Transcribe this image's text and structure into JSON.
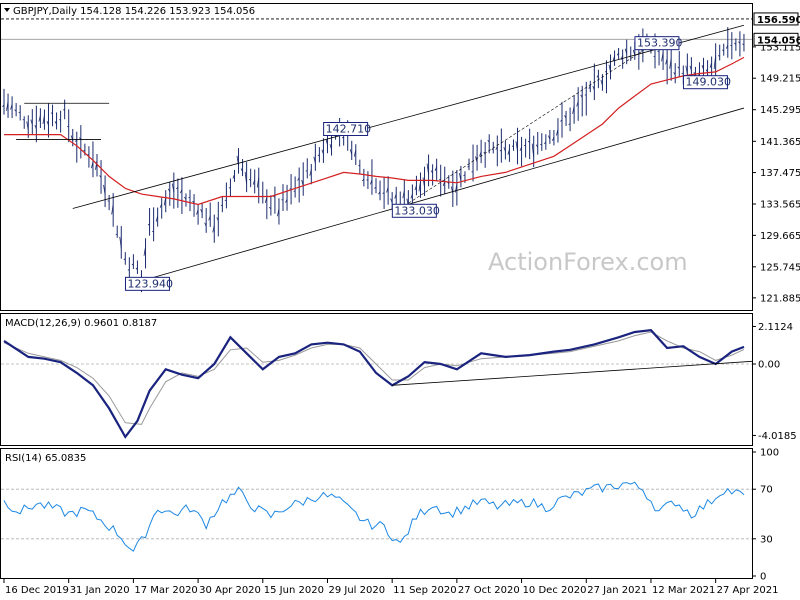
{
  "header": {
    "price_title": "GBPJPY,Daily  154.128 154.226 153.923 154.056",
    "macd_title": "MACD(12,26,9) 0.9601 0.8187",
    "rsi_title": "RSI(14) 65.0835"
  },
  "watermark": "ActionForex.com",
  "colors": {
    "price_bars": "#1a2a6c",
    "sma": "#d42020",
    "trendline": "#000000",
    "macd_line": "#1a237e",
    "signal_line": "#999999",
    "rsi_line": "#1e88e5",
    "grid": "#b0b0b0",
    "label_border": "#1a237e"
  },
  "chart_data": [
    {
      "type": "line",
      "panel": "price",
      "symbol": "GBPJPY",
      "timeframe": "Daily",
      "ohlc": {
        "open": 154.128,
        "high": 154.226,
        "low": 153.923,
        "close": 154.056
      },
      "y_ticks": [
        "121.885",
        "125.745",
        "129.665",
        "133.565",
        "137.475",
        "141.365",
        "145.295",
        "149.215",
        "153.115"
      ],
      "y_tick_values": [
        121.885,
        125.745,
        129.665,
        133.565,
        137.475,
        141.365,
        145.295,
        149.215,
        153.115
      ],
      "ylim": [
        120.5,
        158.2
      ],
      "reference_levels": [
        {
          "label": "156.590",
          "value": 156.59,
          "style": "dashed",
          "boxed": true
        },
        {
          "label": "154.056",
          "value": 154.056,
          "style": "solid",
          "boxed": true
        }
      ],
      "annotations": [
        {
          "label": "123.940",
          "x": 34,
          "value": 123.94
        },
        {
          "label": "142.710",
          "x": 83,
          "value": 142.71
        },
        {
          "label": "133.030",
          "x": 100,
          "value": 133.03
        },
        {
          "label": "153.390",
          "x": 160,
          "value": 153.39
        },
        {
          "label": "149.030",
          "x": 172,
          "value": 149.03
        }
      ],
      "x_ticks": [
        "16 Dec 2019",
        "31 Jan 2020",
        "17 Mar 2020",
        "30 Apr 2020",
        "15 Jun 2020",
        "29 Jul 2020",
        "11 Sep 2020",
        "27 Oct 2020",
        "10 Dec 2020",
        "27 Jan 2021",
        "12 Mar 2021",
        "27 Apr 2021"
      ],
      "x_tick_index": [
        0,
        16,
        32,
        48,
        64,
        80,
        96,
        112,
        128,
        144,
        160,
        176
      ],
      "series": [
        {
          "name": "",
          "x": [
            0,
            6,
            10,
            15,
            18,
            22,
            26,
            30,
            33,
            34,
            36,
            42,
            48,
            52,
            55,
            58,
            60,
            64,
            68,
            72,
            76,
            80,
            83,
            86,
            88,
            92,
            96,
            100,
            106,
            112,
            118,
            124,
            130,
            136,
            140,
            146,
            152,
            156,
            160,
            164,
            168,
            172,
            176,
            180,
            183
          ],
          "values": [
            146.3,
            143.8,
            144.3,
            144.6,
            141.0,
            139.5,
            134.5,
            126.8,
            125.5,
            124.0,
            131.0,
            135.3,
            133.0,
            131.0,
            134.0,
            139.0,
            137.5,
            134.5,
            133.0,
            135.5,
            138.0,
            141.5,
            142.6,
            141.0,
            138.0,
            136.5,
            134.0,
            134.5,
            137.5,
            136.0,
            140.5,
            140.0,
            140.5,
            142.5,
            144.5,
            148.0,
            152.0,
            152.8,
            153.3,
            151.0,
            150.2,
            149.3,
            151.0,
            153.6,
            154.056
          ]
        },
        {
          "name": "",
          "x": [
            0,
            8,
            14,
            18,
            22,
            26,
            30,
            34,
            38,
            42,
            48,
            54,
            60,
            66,
            72,
            78,
            84,
            88,
            92,
            96,
            100,
            106,
            112,
            118,
            124,
            130,
            136,
            142,
            148,
            152,
            156,
            160,
            164,
            168,
            172,
            176,
            180,
            183
          ],
          "values": [
            142.2,
            142.2,
            142.2,
            140.8,
            139.0,
            137.0,
            135.5,
            134.8,
            134.5,
            134.2,
            133.5,
            134.5,
            134.5,
            134.5,
            135.5,
            136.5,
            137.5,
            137.3,
            137.0,
            136.8,
            136.5,
            136.5,
            136.2,
            137.0,
            137.5,
            138.5,
            139.5,
            141.5,
            143.5,
            145.5,
            147.0,
            148.5,
            149.0,
            149.5,
            149.8,
            150.0,
            151.0,
            151.8
          ]
        }
      ],
      "channel_lines": [
        {
          "from": {
            "x": 34,
            "value": 124.0
          },
          "to": {
            "x": 183,
            "value": 145.5
          }
        },
        {
          "from": {
            "x": 17,
            "value": 133.0
          },
          "to": {
            "x": 183,
            "value": 155.8
          }
        }
      ]
    },
    {
      "type": "line",
      "panel": "macd",
      "title": "MACD(12,26,9) 0.9601 0.8187",
      "y_ticks": [
        "2.1124",
        "0.00",
        "-4.0185"
      ],
      "y_tick_values": [
        2.1124,
        0.0,
        -4.0185
      ],
      "ylim": [
        -4.5,
        2.7
      ],
      "series": [
        {
          "name": "MACD",
          "x": [
            0,
            6,
            10,
            14,
            18,
            22,
            26,
            30,
            33,
            36,
            40,
            44,
            48,
            52,
            56,
            60,
            64,
            68,
            72,
            76,
            80,
            84,
            88,
            92,
            96,
            100,
            104,
            108,
            112,
            118,
            124,
            130,
            136,
            140,
            146,
            152,
            156,
            160,
            164,
            168,
            172,
            176,
            180,
            183
          ],
          "values": [
            1.3,
            0.4,
            0.3,
            0.1,
            -0.5,
            -1.2,
            -2.5,
            -4.1,
            -3.2,
            -1.5,
            -0.3,
            -0.6,
            -0.8,
            0.0,
            1.5,
            0.6,
            -0.3,
            0.4,
            0.6,
            1.1,
            1.2,
            1.1,
            0.7,
            -0.5,
            -1.2,
            -0.7,
            0.1,
            0.0,
            -0.3,
            0.6,
            0.4,
            0.5,
            0.7,
            0.8,
            1.1,
            1.5,
            1.8,
            1.9,
            0.9,
            1.0,
            0.4,
            0.0,
            0.7,
            0.96
          ]
        },
        {
          "name": "Signal",
          "x": [
            0,
            6,
            10,
            14,
            18,
            22,
            26,
            30,
            34,
            36,
            40,
            44,
            48,
            52,
            56,
            60,
            64,
            68,
            72,
            76,
            80,
            84,
            88,
            92,
            96,
            100,
            104,
            108,
            112,
            118,
            124,
            130,
            136,
            140,
            146,
            152,
            156,
            160,
            164,
            168,
            172,
            176,
            180,
            183
          ],
          "values": [
            1.2,
            0.6,
            0.4,
            0.2,
            -0.2,
            -0.8,
            -1.8,
            -3.3,
            -3.4,
            -2.5,
            -1.0,
            -0.5,
            -0.7,
            -0.3,
            0.8,
            0.9,
            0.1,
            0.2,
            0.5,
            0.9,
            1.1,
            1.1,
            0.9,
            0.0,
            -0.9,
            -0.9,
            -0.2,
            0.0,
            -0.1,
            0.3,
            0.4,
            0.5,
            0.6,
            0.7,
            1.0,
            1.3,
            1.6,
            1.8,
            1.3,
            0.9,
            0.7,
            0.2,
            0.5,
            0.82
          ]
        }
      ],
      "channel_lines": [
        {
          "from": {
            "x": 96,
            "value": -1.2
          },
          "to": {
            "x": 185,
            "value": 0.15
          }
        }
      ]
    },
    {
      "type": "line",
      "panel": "rsi",
      "title": "RSI(14) 65.0835",
      "y_ticks": [
        "100",
        "70",
        "30",
        "0"
      ],
      "y_tick_values": [
        100,
        70,
        30,
        0
      ],
      "ylim": [
        0,
        100
      ],
      "dashed_levels": [
        70,
        30
      ],
      "series": [
        {
          "name": "RSI",
          "x": [
            0,
            4,
            8,
            12,
            16,
            20,
            24,
            28,
            32,
            34,
            38,
            42,
            46,
            50,
            54,
            58,
            62,
            66,
            70,
            74,
            78,
            82,
            86,
            90,
            94,
            98,
            102,
            106,
            110,
            114,
            118,
            122,
            126,
            130,
            134,
            138,
            142,
            146,
            150,
            154,
            158,
            162,
            166,
            170,
            174,
            178,
            182,
            183
          ],
          "values": [
            60,
            52,
            58,
            55,
            50,
            53,
            45,
            35,
            20,
            28,
            55,
            50,
            55,
            42,
            60,
            68,
            55,
            48,
            56,
            60,
            65,
            63,
            52,
            42,
            40,
            25,
            48,
            58,
            50,
            55,
            60,
            56,
            58,
            60,
            55,
            62,
            66,
            70,
            72,
            75,
            70,
            52,
            60,
            50,
            58,
            70,
            66,
            65
          ]
        }
      ]
    }
  ]
}
